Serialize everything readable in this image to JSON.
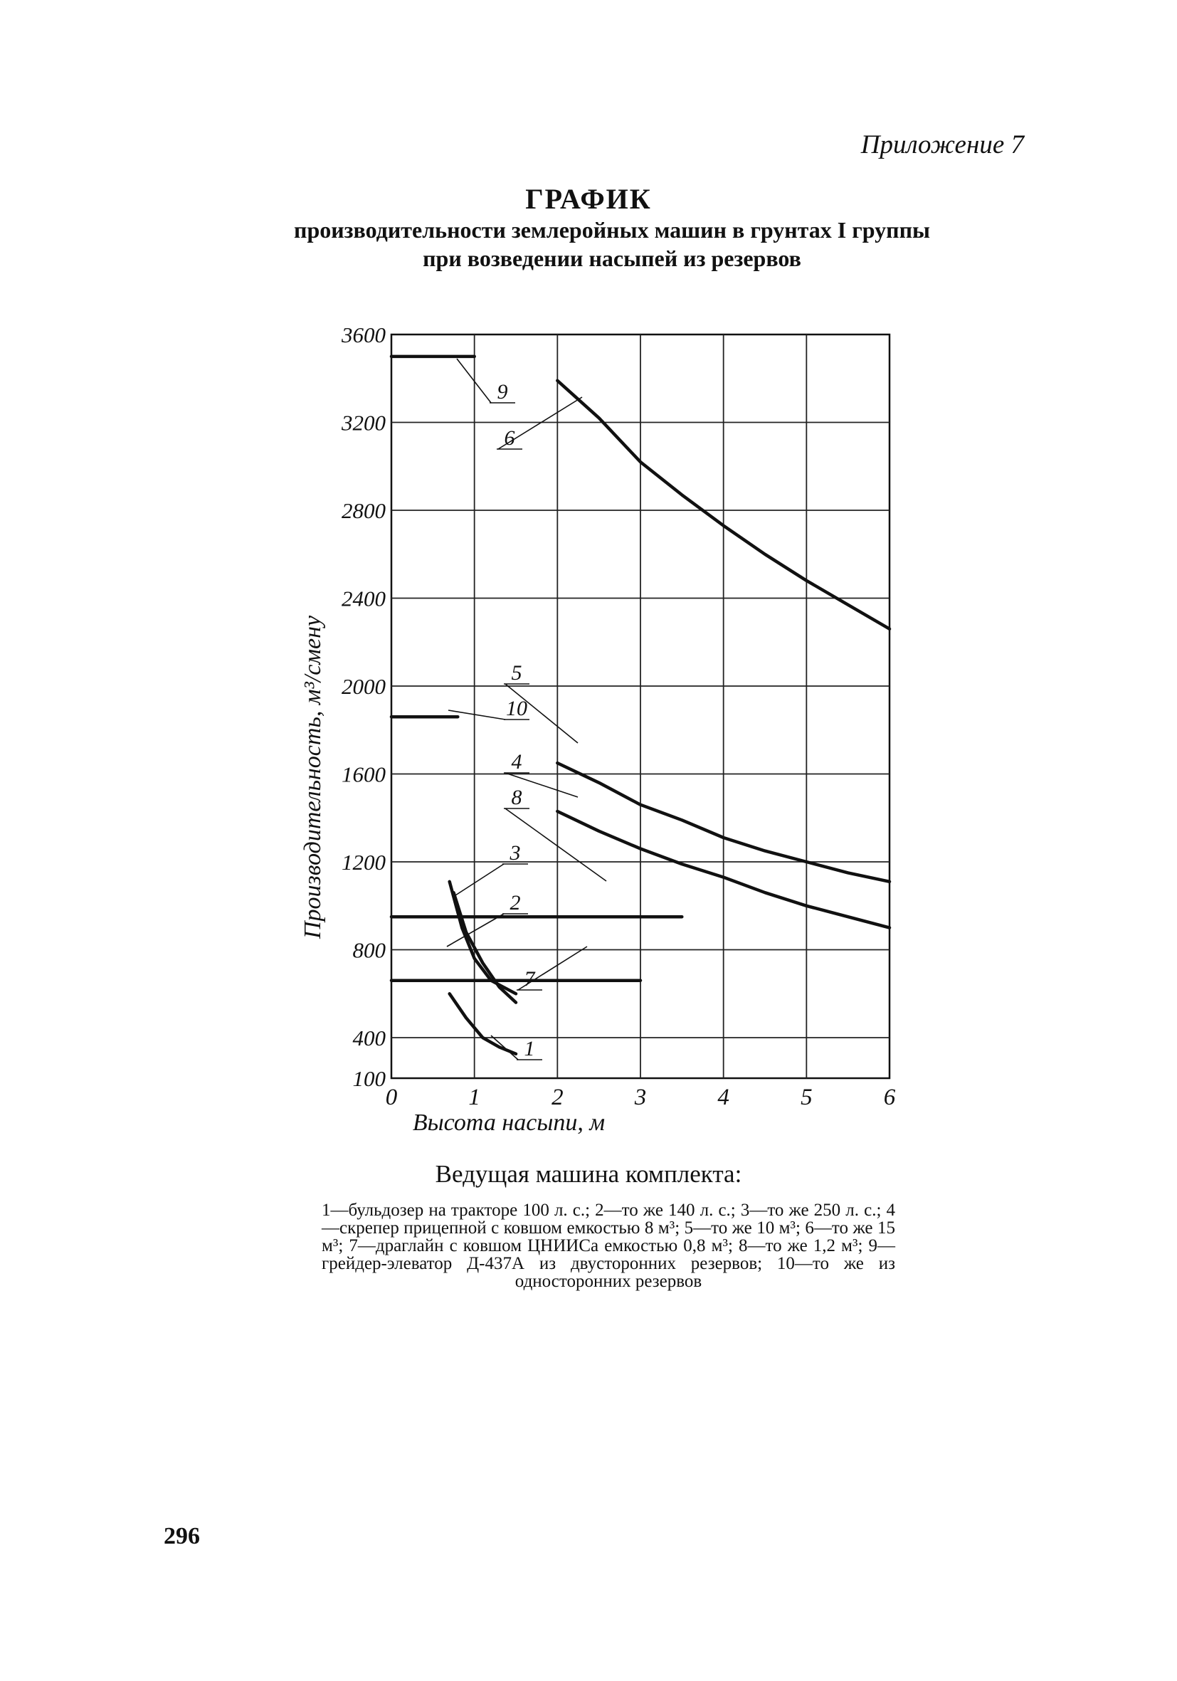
{
  "header": {
    "appendix": "Приложение 7",
    "title": "ГРАФИК",
    "subtitle_line1": "производительности землеройных машин в грунтах I группы",
    "subtitle_line2": "при возведении насыпей из резервов"
  },
  "chart_data": {
    "type": "line",
    "xlabel": "Высота насыпи, м",
    "ylabel": "Производительность, м³/смену",
    "xlim": [
      0,
      6
    ],
    "ylim": [
      100,
      3600
    ],
    "x_ticks": [
      "0",
      "1",
      "2",
      "3",
      "4",
      "5",
      "6"
    ],
    "y_ticks": [
      "3600",
      "3200",
      "2800",
      "2400",
      "2000",
      "1600",
      "1200",
      "800",
      "400",
      "100"
    ],
    "grid": true,
    "series": [
      {
        "name": "1",
        "points": [
          [
            0.7,
            600
          ],
          [
            0.9,
            490
          ],
          [
            1.1,
            400
          ],
          [
            1.3,
            330
          ],
          [
            1.5,
            280
          ]
        ]
      },
      {
        "name": "2",
        "points": [
          [
            0.75,
            1060
          ],
          [
            0.9,
            880
          ],
          [
            1.1,
            740
          ],
          [
            1.3,
            630
          ],
          [
            1.5,
            560
          ]
        ]
      },
      {
        "name": "3",
        "points": [
          [
            0.7,
            1110
          ],
          [
            0.85,
            900
          ],
          [
            1.0,
            760
          ],
          [
            1.2,
            660
          ],
          [
            1.5,
            600
          ]
        ]
      },
      {
        "name": "4",
        "points": [
          [
            2.0,
            1430
          ],
          [
            2.5,
            1340
          ],
          [
            3.0,
            1260
          ],
          [
            3.5,
            1190
          ],
          [
            4.0,
            1130
          ],
          [
            4.5,
            1060
          ],
          [
            5.0,
            1000
          ],
          [
            5.5,
            950
          ],
          [
            6.0,
            900
          ]
        ]
      },
      {
        "name": "5",
        "points": [
          [
            2.0,
            1650
          ],
          [
            2.5,
            1560
          ],
          [
            3.0,
            1460
          ],
          [
            3.5,
            1390
          ],
          [
            4.0,
            1310
          ],
          [
            4.5,
            1250
          ],
          [
            5.0,
            1200
          ],
          [
            5.5,
            1150
          ],
          [
            6.0,
            1110
          ]
        ]
      },
      {
        "name": "6",
        "points": [
          [
            2.0,
            3390
          ],
          [
            2.5,
            3220
          ],
          [
            3.0,
            3020
          ],
          [
            3.5,
            2870
          ],
          [
            4.0,
            2730
          ],
          [
            4.5,
            2600
          ],
          [
            5.0,
            2480
          ],
          [
            5.5,
            2370
          ],
          [
            6.0,
            2260
          ]
        ]
      },
      {
        "name": "7",
        "points": [
          [
            0,
            660
          ],
          [
            3.0,
            660
          ]
        ]
      },
      {
        "name": "8",
        "points": [
          [
            0,
            950
          ],
          [
            3.5,
            950
          ]
        ]
      },
      {
        "name": "9",
        "points": [
          [
            0,
            3500
          ],
          [
            1.0,
            3500
          ]
        ]
      },
      {
        "name": "10",
        "points": [
          [
            0,
            1860
          ],
          [
            0.8,
            1860
          ]
        ]
      }
    ]
  },
  "legend": {
    "title": "Ведущая машина комплекта:",
    "text": "1—бульдозер на тракторе 100 л. с.; 2—то же 140 л. с.; 3—то же 250 л. с.; 4—скрепер прицепной с ковшом емкостью 8 м³; 5—то же 10 м³; 6—то же 15 м³; 7—драглайн с ковшом ЦНИИСа емкостью 0,8 м³; 8—то же 1,2 м³; 9—грейдер-элеватор Д-437А из двусторонних резервов; 10—то же из односторонних резервов"
  },
  "page_number": "296"
}
